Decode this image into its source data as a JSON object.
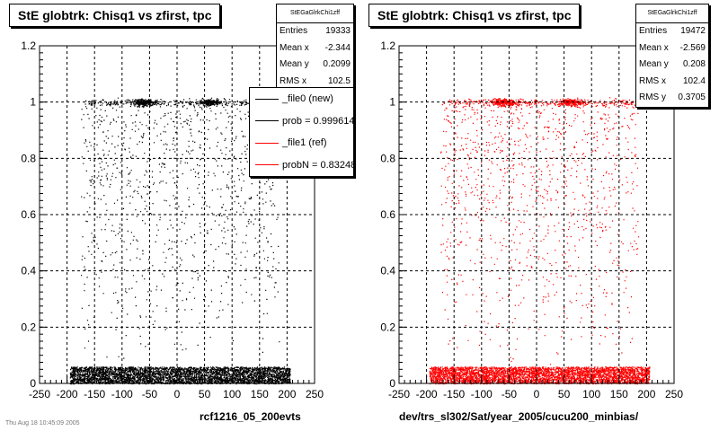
{
  "footer_note": "Thu Aug 18 10:45:09 2005",
  "colors": {
    "new": "#000000",
    "ref": "#ff0000",
    "frame": "#000000",
    "grid": "#000000",
    "background": "#ffffff"
  },
  "chart_data": [
    {
      "type": "scatter",
      "title": "StE globtrk: Chisq1 vs zfirst, tpc",
      "xlabel": "rcf1216_05_200evts",
      "ylabel": "",
      "xlim": [
        -250,
        250
      ],
      "ylim": [
        0,
        1.2
      ],
      "x_ticks": [
        "-250",
        "-200",
        "-150",
        "-100",
        "-50",
        "0",
        "50",
        "100",
        "150",
        "200",
        "250"
      ],
      "y_ticks": [
        "0",
        "0.2",
        "0.4",
        "0.6",
        "0.8",
        "1",
        "1.2"
      ],
      "grid": true,
      "marker_color": "#000000",
      "stats": {
        "name": "StEGaGlrkChi1zff",
        "rows": [
          {
            "label": "Entries",
            "value": "19333"
          },
          {
            "label": "Mean x",
            "value": "-2.344"
          },
          {
            "label": "Mean y",
            "value": "0.2099"
          },
          {
            "label": "RMS x",
            "value": "102.5"
          }
        ]
      },
      "legend": {
        "placement": "top-right",
        "items": [
          {
            "label": "_file0 (new)",
            "color": "#000000"
          },
          {
            "label": "prob = 0.999614",
            "color": "#000000"
          },
          {
            "label": "_file1 (ref)",
            "color": "#ff0000"
          },
          {
            "label": "probN = 0.832487",
            "color": "#ff0000"
          }
        ]
      },
      "distribution": {
        "x_range": [
          -195,
          205
        ],
        "dense_band": {
          "y_range": [
            0,
            0.06
          ],
          "fraction": 0.72
        },
        "upper_band": {
          "y_center": 1.0,
          "y_spread": 0.025,
          "x_peaks": [
            -60,
            60
          ],
          "fraction": 0.12
        },
        "scatter_fraction": 0.16
      }
    },
    {
      "type": "scatter",
      "title": "StE globtrk: Chisq1 vs zfirst, tpc",
      "xlabel": "dev/trs_sl302/Sat/year_2005/cucu200_minbias/",
      "ylabel": "",
      "xlim": [
        -250,
        250
      ],
      "ylim": [
        0,
        1.2
      ],
      "x_ticks": [
        "-250",
        "-200",
        "-150",
        "-100",
        "-50",
        "0",
        "50",
        "100",
        "150",
        "200",
        "250"
      ],
      "y_ticks": [
        "0",
        "0.2",
        "0.4",
        "0.6",
        "0.8",
        "1",
        "1.2"
      ],
      "grid": true,
      "marker_color": "#ff0000",
      "stats": {
        "name": "StEGaGlrkChi1zff",
        "rows": [
          {
            "label": "Entries",
            "value": "19472"
          },
          {
            "label": "Mean x",
            "value": "-2.569"
          },
          {
            "label": "Mean y",
            "value": "0.208"
          },
          {
            "label": "RMS x",
            "value": "102.4"
          },
          {
            "label": "RMS y",
            "value": "0.3705"
          }
        ]
      },
      "distribution": {
        "x_range": [
          -195,
          205
        ],
        "dense_band": {
          "y_range": [
            0,
            0.06
          ],
          "fraction": 0.72
        },
        "upper_band": {
          "y_center": 1.0,
          "y_spread": 0.025,
          "x_peaks": [
            -60,
            60
          ],
          "fraction": 0.12
        },
        "scatter_fraction": 0.16
      }
    }
  ]
}
